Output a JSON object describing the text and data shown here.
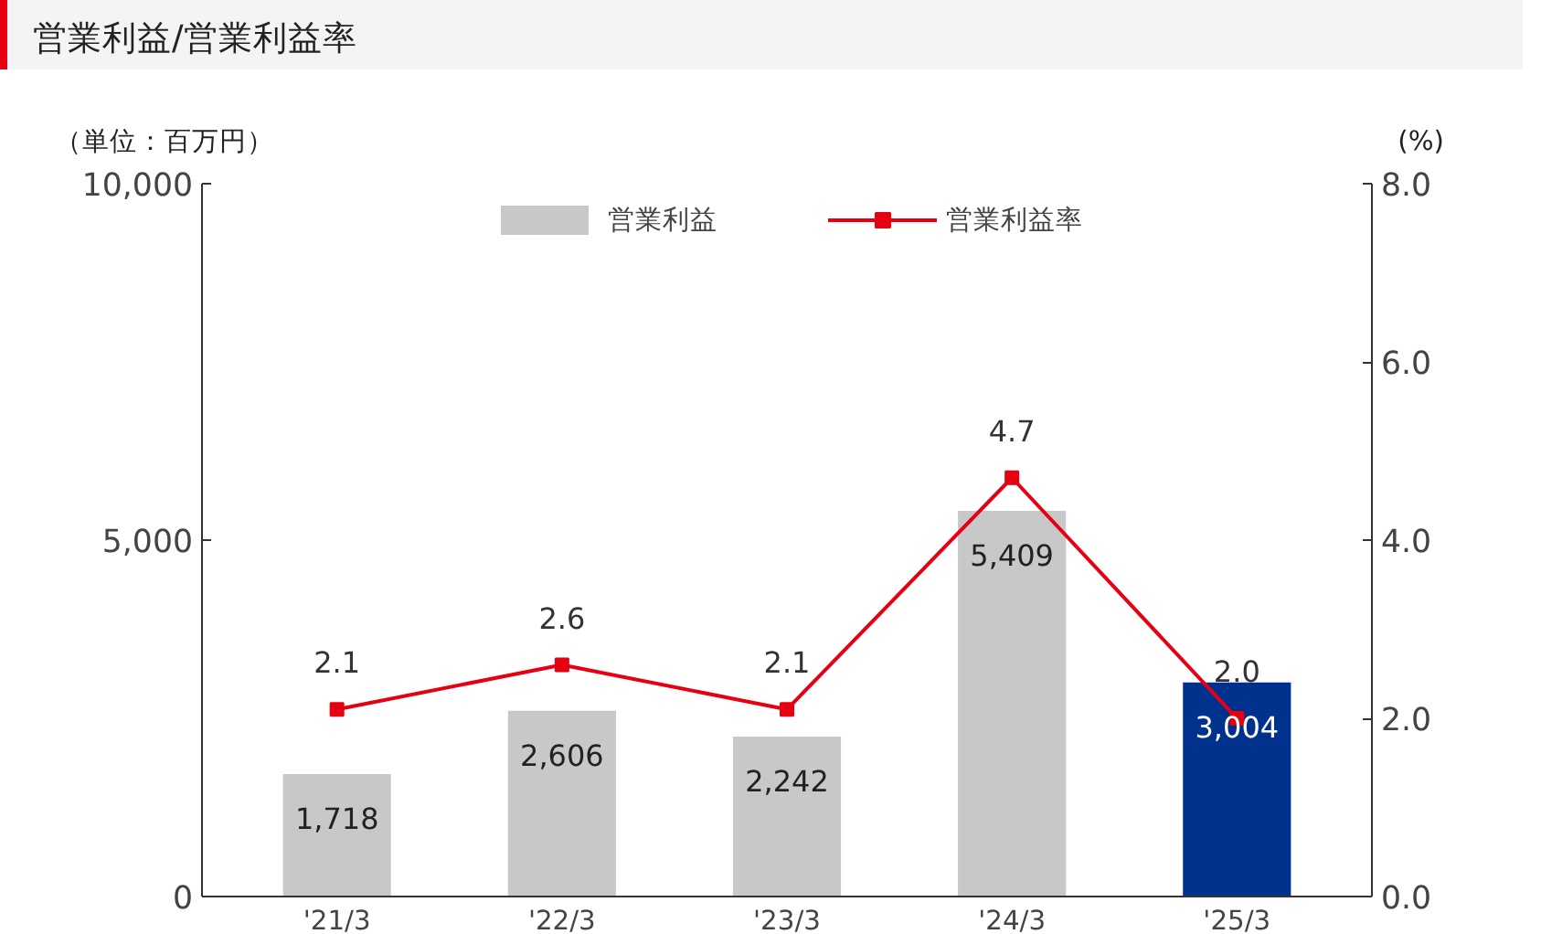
{
  "chart_data": {
    "type": "bar",
    "title": "営業利益/営業利益率",
    "ylabel": "（単位：百万円）",
    "y2label": "(%)",
    "categories": [
      "'21/3",
      "'22/3",
      "'23/3",
      "'24/3",
      "'25/3"
    ],
    "series": [
      {
        "name": "営業利益",
        "color": "#c8c8c8",
        "colors": [
          "#c8c8c8",
          "#c8c8c8",
          "#c8c8c8",
          "#c8c8c8",
          "#00318c"
        ],
        "values": [
          1718,
          2606,
          2242,
          5409,
          3004
        ],
        "value_labels": [
          "1,718",
          "2,606",
          "2,242",
          "5,409",
          "3,004"
        ]
      },
      {
        "name": "営業利益率",
        "type": "line",
        "axis": "y2",
        "color": "#e60012",
        "marker": "square",
        "values": [
          2.1,
          2.6,
          2.1,
          4.7,
          2.0
        ],
        "value_labels": [
          "2.1",
          "2.6",
          "2.1",
          "4.7",
          "2.0"
        ]
      }
    ],
    "ylim": [
      0,
      10000
    ],
    "yticks": [
      {
        "value": 0,
        "label": "0"
      },
      {
        "value": 5000,
        "label": "5,000"
      },
      {
        "value": 10000,
        "label": "10,000"
      }
    ],
    "y2lim": [
      0,
      8
    ],
    "y2ticks": [
      {
        "value": 0,
        "label": "0.0"
      },
      {
        "value": 2,
        "label": "2.0"
      },
      {
        "value": 4,
        "label": "4.0"
      },
      {
        "value": 6,
        "label": "6.0"
      },
      {
        "value": 8,
        "label": "8.0"
      }
    ],
    "grid": false,
    "legend": "top"
  }
}
